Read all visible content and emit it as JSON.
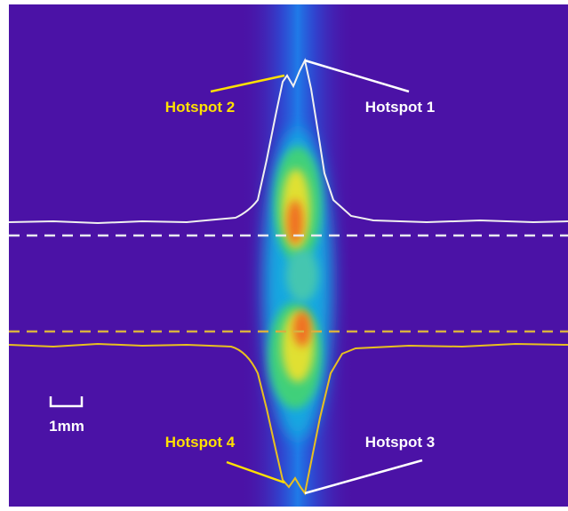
{
  "labels": {
    "hotspot_1": "Hotspot 1",
    "hotspot_2": "Hotspot 2",
    "hotspot_3": "Hotspot 3",
    "hotspot_4": "Hotspot 4",
    "scale": "1mm"
  }
}
